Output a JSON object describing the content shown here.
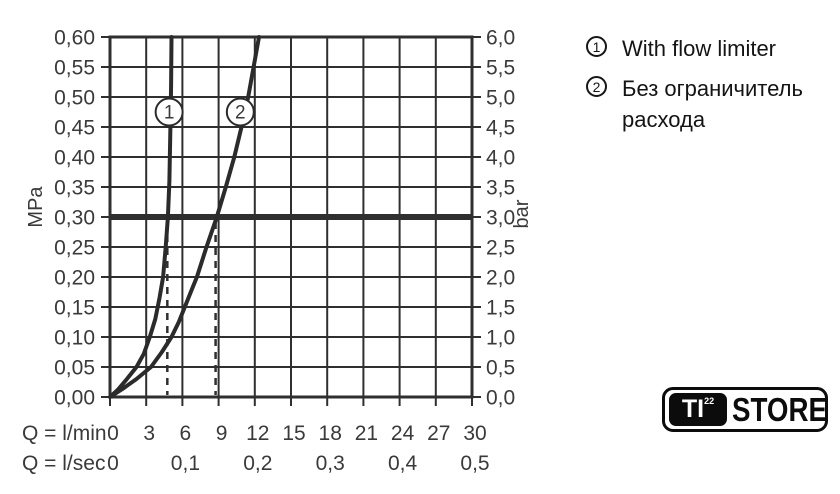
{
  "legend": {
    "items": [
      {
        "number": "1",
        "label": "With flow limiter"
      },
      {
        "number": "2",
        "label": "Без ограничитель расхода"
      }
    ]
  },
  "logo": {
    "ti": "TI",
    "superscript": "22",
    "store": "STORE"
  },
  "chart_data": {
    "type": "line",
    "title": "",
    "x_axis": {
      "name_lmin": "Q = l/min",
      "name_lsec": "Q = l/sec",
      "range": [
        0,
        30
      ],
      "lmin_ticks": [
        "0",
        "3",
        "6",
        "9",
        "12",
        "15",
        "18",
        "21",
        "24",
        "27",
        "30"
      ],
      "lmin_tick_values": [
        0,
        3,
        6,
        9,
        12,
        15,
        18,
        21,
        24,
        27,
        30
      ],
      "lsec_ticks": [
        {
          "label": "0",
          "q": 0
        },
        {
          "label": "0,1",
          "q": 6
        },
        {
          "label": "0,2",
          "q": 12
        },
        {
          "label": "0,3",
          "q": 18
        },
        {
          "label": "0,4",
          "q": 24
        },
        {
          "label": "0,5",
          "q": 30
        }
      ]
    },
    "y_left_axis": {
      "name": "MPa",
      "range": [
        0,
        0.6
      ],
      "step": 0.05,
      "ticks": [
        "0,60",
        "0,55",
        "0,50",
        "0,45",
        "0,40",
        "0,35",
        "0,30",
        "0,25",
        "0,20",
        "0,15",
        "0,10",
        "0,05",
        "0,00"
      ]
    },
    "y_right_axis": {
      "name": "bar",
      "range": [
        0,
        6.0
      ],
      "step": 0.5,
      "ticks": [
        "6,0",
        "5,5",
        "5,0",
        "4,5",
        "4,0",
        "3,5",
        "3,0",
        "2,5",
        "2,0",
        "1,5",
        "1,0",
        "0,5",
        "0,0"
      ]
    },
    "grid": true,
    "reference_line": {
      "mpa": 0.3,
      "bar": 3.0
    },
    "dashed_lines": [
      {
        "q": 4.75,
        "to_mpa": 0.3
      },
      {
        "q": 8.75,
        "to_mpa": 0.3
      }
    ],
    "series": [
      {
        "name": "1",
        "label": "With flow limiter",
        "points_q_mpa": [
          [
            0,
            0
          ],
          [
            0.7,
            0.013
          ],
          [
            1.4,
            0.03
          ],
          [
            2.2,
            0.05
          ],
          [
            2.8,
            0.072
          ],
          [
            3.3,
            0.1
          ],
          [
            3.75,
            0.13
          ],
          [
            4.1,
            0.165
          ],
          [
            4.4,
            0.2
          ],
          [
            4.62,
            0.25
          ],
          [
            4.8,
            0.3
          ],
          [
            4.92,
            0.36
          ],
          [
            5.0,
            0.44
          ],
          [
            5.06,
            0.52
          ],
          [
            5.1,
            0.6
          ]
        ]
      },
      {
        "name": "2",
        "label": "Без ограничитель расхода",
        "points_q_mpa": [
          [
            0,
            0
          ],
          [
            1.0,
            0.013
          ],
          [
            2.2,
            0.03
          ],
          [
            3.4,
            0.05
          ],
          [
            4.3,
            0.075
          ],
          [
            5.1,
            0.1
          ],
          [
            5.7,
            0.125
          ],
          [
            6.2,
            0.15
          ],
          [
            6.7,
            0.175
          ],
          [
            7.2,
            0.2
          ],
          [
            8.0,
            0.25
          ],
          [
            8.85,
            0.3
          ],
          [
            9.6,
            0.35
          ],
          [
            10.3,
            0.4
          ],
          [
            10.9,
            0.45
          ],
          [
            11.45,
            0.5
          ],
          [
            11.9,
            0.55
          ],
          [
            12.35,
            0.6
          ]
        ]
      }
    ],
    "markers": [
      {
        "number": "1",
        "q": 4.9,
        "mpa": 0.475
      },
      {
        "number": "2",
        "q": 10.8,
        "mpa": 0.475
      }
    ],
    "colors": {
      "line": "#2b2b2b",
      "grid": "#2f2f2f",
      "text": "#3a3a3a",
      "background": "#ffffff"
    }
  }
}
